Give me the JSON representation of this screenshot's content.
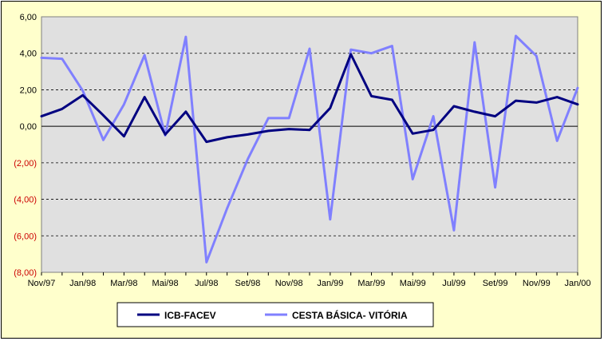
{
  "chart_data": {
    "type": "line",
    "title": "",
    "xlabel": "",
    "ylabel": "",
    "ylim": [
      -8,
      6
    ],
    "y_tick_step": 2,
    "y_tick_labels": [
      "(8,00)",
      "(6,00)",
      "(4,00)",
      "(2,00)",
      "0,00",
      "2,00",
      "4,00",
      "6,00"
    ],
    "x": [
      "Nov/97",
      "Dez/97",
      "Jan/98",
      "Fev/98",
      "Mar/98",
      "Abr/98",
      "Mai/98",
      "Jun/98",
      "Jul/98",
      "Ago/98",
      "Set/98",
      "Out/98",
      "Nov/98",
      "Dez/98",
      "Jan/99",
      "Fev/99",
      "Mar/99",
      "Abr/99",
      "Mai/99",
      "Jun/99",
      "Jul/99",
      "Ago/99",
      "Set/99",
      "Out/99",
      "Nov/99",
      "Dez/99",
      "Jan/00"
    ],
    "x_tick_labels": [
      "Nov/97",
      "Jan/98",
      "Mar/98",
      "Mai/98",
      "Jul/98",
      "Set/98",
      "Nov/98",
      "Jan/99",
      "Mar/99",
      "Mai/99",
      "Jul/99",
      "Set/99",
      "Nov/99",
      "Jan/00"
    ],
    "grid": "horizontal-dashed",
    "legend_position": "bottom",
    "series": [
      {
        "name": "ICB-FACEV",
        "color": "#000080",
        "values": [
          0.55,
          0.95,
          1.7,
          0.6,
          -0.55,
          1.6,
          -0.45,
          0.8,
          -0.85,
          -0.6,
          -0.45,
          -0.25,
          -0.15,
          -0.2,
          1.0,
          3.95,
          1.65,
          1.45,
          -0.4,
          -0.2,
          1.1,
          0.8,
          0.55,
          1.4,
          1.3,
          1.6,
          1.2
        ]
      },
      {
        "name": "CESTA BÁSICA- VITÓRIA",
        "color": "#8080ff",
        "values": [
          3.75,
          3.7,
          1.95,
          -0.75,
          1.2,
          3.9,
          -0.5,
          4.9,
          -7.45,
          -4.5,
          -1.8,
          0.45,
          0.45,
          4.25,
          -5.1,
          4.2,
          4.0,
          4.4,
          -2.9,
          0.55,
          -5.7,
          4.6,
          -3.35,
          4.95,
          3.85,
          -0.8,
          2.1
        ]
      }
    ]
  }
}
